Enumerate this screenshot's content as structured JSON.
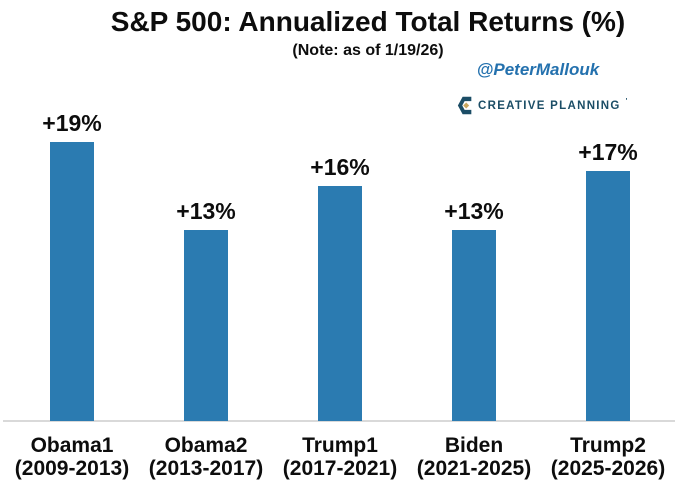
{
  "header": {
    "title": "S&P 500: Annualized Total Returns (%)",
    "subtitle": "(Note: as of 1/19/26)",
    "handle": "@PeterMallouk"
  },
  "brand": {
    "name": "CREATIVE PLANNING",
    "trademark": "'"
  },
  "colors": {
    "bar": "#2B7BB1",
    "axis_line": "#D9D9D9",
    "handle_text": "#2471AE",
    "brand_text": "#1B4D66",
    "brand_gold": "#C9A760",
    "label_text": "#0d0d0d",
    "background": "#ffffff"
  },
  "chart_data": {
    "type": "bar",
    "title": "S&P 500: Annualized Total Returns (%)",
    "subtitle": "(Note: as of 1/19/26)",
    "categories": [
      "Obama1",
      "Obama2",
      "Trump1",
      "Biden",
      "Trump2"
    ],
    "category_sublabels": [
      "(2009-2013)",
      "(2013-2017)",
      "(2017-2021)",
      "(2021-2025)",
      "(2025-2026)"
    ],
    "values": [
      19,
      13,
      16,
      13,
      17
    ],
    "data_labels": [
      "+19%",
      "+13%",
      "+16%",
      "+13%",
      "+17%"
    ],
    "xlabel": "",
    "ylabel": "",
    "ylim": [
      0,
      20
    ],
    "grid": false,
    "legend": false,
    "y_axis_shown": false,
    "bar_color": "#2B7BB1",
    "baseline_color": "#D9D9D9"
  }
}
